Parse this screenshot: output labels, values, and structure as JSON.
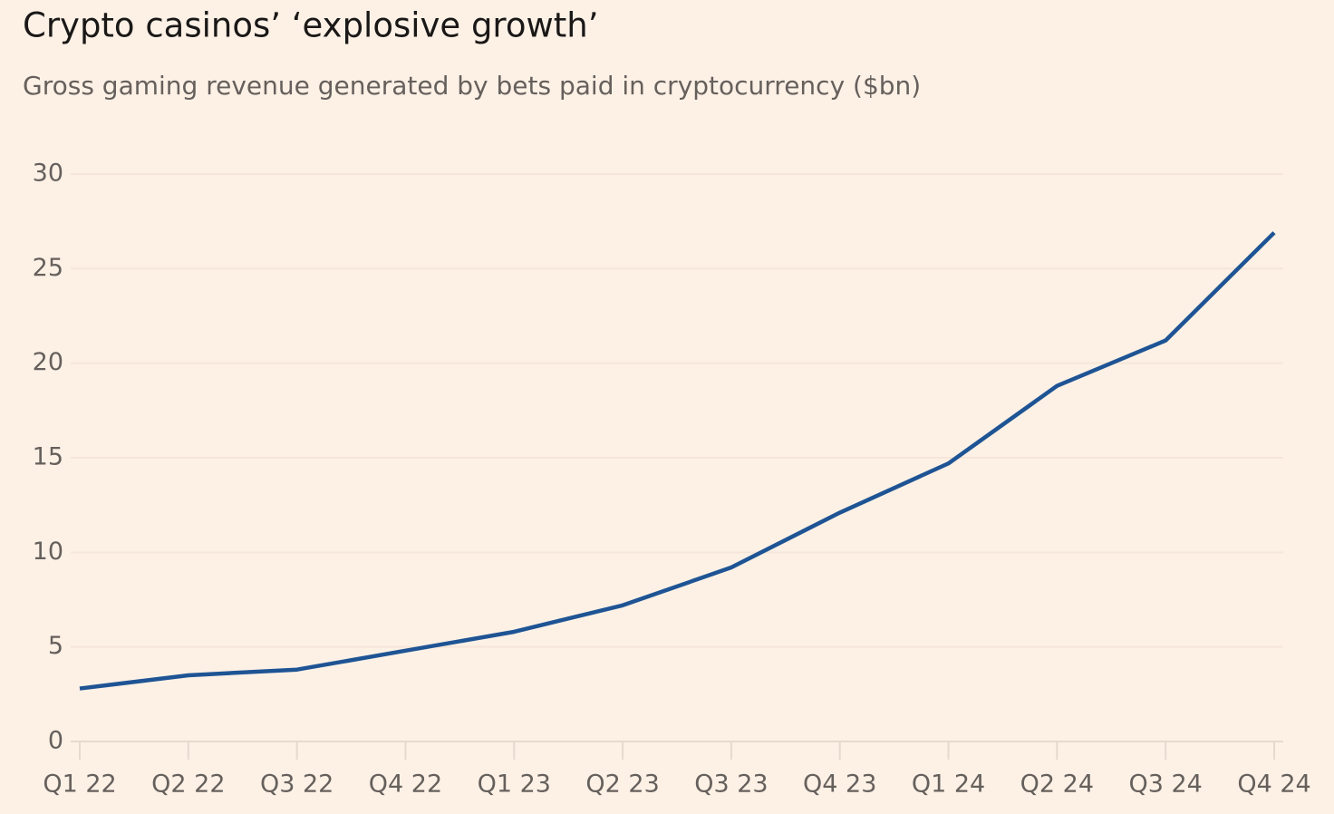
{
  "chart_data": {
    "type": "line",
    "title": "Crypto casinos’ ‘explosive growth’",
    "subtitle": "Gross gaming revenue generated by bets paid in cryptocurrency ($bn)",
    "categories": [
      "Q1 22",
      "Q2 22",
      "Q3 22",
      "Q4 22",
      "Q1 23",
      "Q2 23",
      "Q3 23",
      "Q4 23",
      "Q1 24",
      "Q2 24",
      "Q3 24",
      "Q4 24"
    ],
    "series": [
      {
        "color": "#1e5494",
        "values": [
          2.8,
          3.5,
          3.8,
          4.8,
          5.8,
          7.2,
          9.2,
          12.1,
          14.7,
          18.8,
          21.2,
          26.9
        ]
      }
    ],
    "ylim": [
      0,
      30
    ],
    "yticks": [
      0,
      5,
      10,
      15,
      20,
      25,
      30
    ],
    "grid": true
  }
}
